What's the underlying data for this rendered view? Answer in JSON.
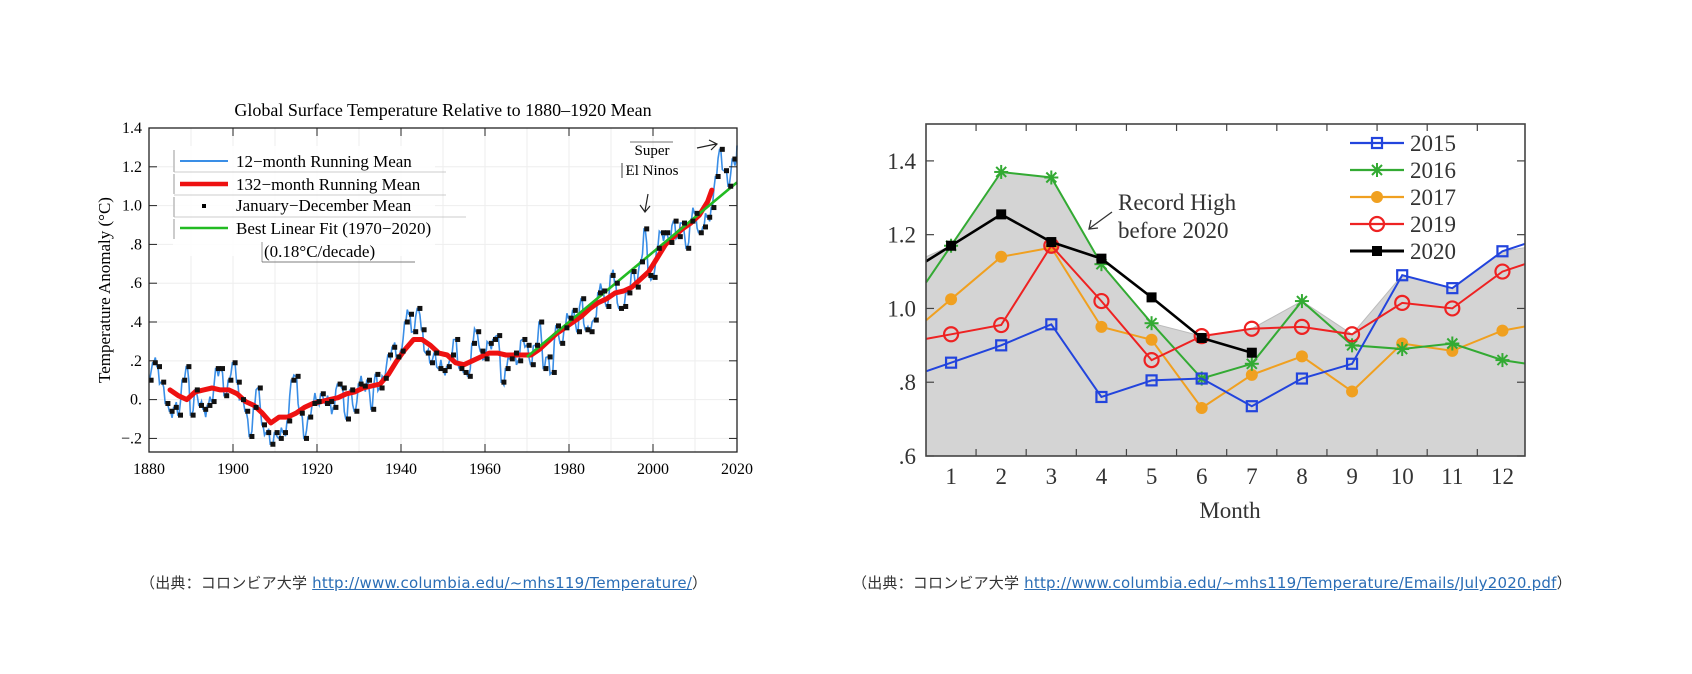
{
  "chart_data": [
    {
      "type": "line",
      "title": "Global Surface Temperature Relative to 1880–1920 Mean",
      "xlabel": "",
      "ylabel": "Temperature Anomaly (°C)",
      "xlim": [
        1880,
        2020
      ],
      "ylim": [
        -0.27,
        1.4
      ],
      "xticks": [
        1880,
        1900,
        1920,
        1940,
        1960,
        1980,
        2000,
        2020
      ],
      "xtick_labels": [
        "1880",
        "1900",
        "1920",
        "1940",
        "1960",
        "1980",
        "2000",
        "2020"
      ],
      "yticks": [
        -0.2,
        0.0,
        0.2,
        0.4,
        0.6,
        0.8,
        1.0,
        1.2,
        1.4
      ],
      "ytick_labels": [
        "−.2",
        "0.",
        ".2",
        ".4",
        ".6",
        ".8",
        "1.0",
        "1.2",
        "1.4"
      ],
      "grid": true,
      "legend_position": "top-left",
      "legend": [
        {
          "label": "12−month Running Mean",
          "color": "#3a8ee6",
          "style": "line"
        },
        {
          "label": "132−month Running Mean",
          "color": "#ee1111",
          "style": "thick-line"
        },
        {
          "label": "January−December Mean",
          "color": "#000000",
          "style": "marker"
        },
        {
          "label": "Best Linear Fit (1970−2020)",
          "color": "#22bb22",
          "style": "line"
        }
      ],
      "legend_note": "(0.18°C/decade)",
      "annotations": [
        {
          "text_lines": [
            "Super",
            "El Ninos"
          ],
          "points_to": [
            1998,
            2016
          ]
        }
      ],
      "x": [
        1880,
        1881,
        1882,
        1883,
        1884,
        1885,
        1886,
        1887,
        1888,
        1889,
        1890,
        1891,
        1892,
        1893,
        1894,
        1895,
        1896,
        1897,
        1898,
        1899,
        1900,
        1901,
        1902,
        1903,
        1904,
        1905,
        1906,
        1907,
        1908,
        1909,
        1910,
        1911,
        1912,
        1913,
        1914,
        1915,
        1916,
        1917,
        1918,
        1919,
        1920,
        1921,
        1922,
        1923,
        1924,
        1925,
        1926,
        1927,
        1928,
        1929,
        1930,
        1931,
        1932,
        1933,
        1934,
        1935,
        1936,
        1937,
        1938,
        1939,
        1940,
        1941,
        1942,
        1943,
        1944,
        1945,
        1946,
        1947,
        1948,
        1949,
        1950,
        1951,
        1952,
        1953,
        1954,
        1955,
        1956,
        1957,
        1958,
        1959,
        1960,
        1961,
        1962,
        1963,
        1964,
        1965,
        1966,
        1967,
        1968,
        1969,
        1970,
        1971,
        1972,
        1973,
        1974,
        1975,
        1976,
        1977,
        1978,
        1979,
        1980,
        1981,
        1982,
        1983,
        1984,
        1985,
        1986,
        1987,
        1988,
        1989,
        1990,
        1991,
        1992,
        1993,
        1994,
        1995,
        1996,
        1997,
        1998,
        1999,
        2000,
        2001,
        2002,
        2003,
        2004,
        2005,
        2006,
        2007,
        2008,
        2009,
        2010,
        2011,
        2012,
        2013,
        2014,
        2015,
        2016,
        2017,
        2018,
        2019
      ],
      "series": [
        {
          "name": "January−December Mean",
          "values": [
            0.1,
            0.19,
            0.17,
            0.09,
            -0.02,
            -0.06,
            -0.04,
            -0.08,
            0.1,
            0.17,
            -0.08,
            0.05,
            -0.03,
            -0.05,
            -0.03,
            -0.01,
            0.16,
            0.16,
            0.02,
            0.1,
            0.19,
            0.09,
            0.0,
            -0.06,
            -0.19,
            -0.04,
            0.06,
            -0.13,
            -0.17,
            -0.23,
            -0.17,
            -0.2,
            -0.17,
            -0.11,
            0.1,
            0.12,
            -0.07,
            -0.2,
            -0.09,
            -0.02,
            -0.01,
            0.03,
            -0.02,
            -0.01,
            -0.04,
            0.08,
            0.06,
            -0.1,
            0.05,
            -0.06,
            0.08,
            0.07,
            0.1,
            -0.05,
            0.13,
            0.06,
            0.11,
            0.23,
            0.27,
            0.22,
            0.25,
            0.4,
            0.44,
            0.35,
            0.47,
            0.36,
            0.24,
            0.19,
            0.24,
            0.16,
            0.15,
            0.17,
            0.23,
            0.31,
            0.16,
            0.14,
            0.12,
            0.29,
            0.35,
            0.25,
            0.21,
            0.29,
            0.31,
            0.33,
            0.09,
            0.16,
            0.21,
            0.24,
            0.2,
            0.31,
            0.28,
            0.18,
            0.28,
            0.4,
            0.16,
            0.22,
            0.14,
            0.38,
            0.29,
            0.37,
            0.42,
            0.46,
            0.35,
            0.52,
            0.36,
            0.35,
            0.41,
            0.55,
            0.56,
            0.48,
            0.64,
            0.6,
            0.47,
            0.48,
            0.55,
            0.66,
            0.58,
            0.71,
            0.88,
            0.64,
            0.63,
            0.78,
            0.86,
            0.86,
            0.81,
            0.92,
            0.84,
            0.91,
            0.78,
            0.92,
            0.96,
            0.86,
            0.89,
            0.94,
            0.99,
            1.15,
            1.29,
            1.18,
            1.1,
            1.24
          ]
        },
        {
          "name": "132−month Running Mean",
          "x": [
            1885,
            1887,
            1889,
            1891,
            1893,
            1895,
            1897,
            1899,
            1901,
            1903,
            1905,
            1907,
            1909,
            1911,
            1913,
            1915,
            1917,
            1919,
            1921,
            1923,
            1925,
            1927,
            1929,
            1931,
            1933,
            1935,
            1937,
            1939,
            1941,
            1943,
            1945,
            1947,
            1949,
            1951,
            1953,
            1955,
            1957,
            1959,
            1961,
            1963,
            1965,
            1967,
            1969,
            1971,
            1973,
            1975,
            1977,
            1979,
            1981,
            1983,
            1985,
            1987,
            1989,
            1991,
            1993,
            1995,
            1997,
            1999,
            2001,
            2003,
            2005,
            2007,
            2009,
            2011,
            2013,
            2014
          ],
          "values": [
            0.05,
            0.02,
            0.0,
            0.04,
            0.05,
            0.06,
            0.05,
            0.05,
            0.03,
            -0.01,
            -0.03,
            -0.07,
            -0.12,
            -0.09,
            -0.09,
            -0.07,
            -0.04,
            -0.02,
            -0.01,
            0.0,
            0.01,
            0.03,
            0.04,
            0.06,
            0.07,
            0.08,
            0.13,
            0.2,
            0.26,
            0.31,
            0.31,
            0.28,
            0.24,
            0.23,
            0.19,
            0.18,
            0.2,
            0.22,
            0.24,
            0.24,
            0.23,
            0.23,
            0.23,
            0.23,
            0.26,
            0.3,
            0.34,
            0.37,
            0.4,
            0.43,
            0.47,
            0.5,
            0.52,
            0.55,
            0.56,
            0.58,
            0.62,
            0.66,
            0.73,
            0.8,
            0.84,
            0.88,
            0.91,
            0.95,
            1.02,
            1.08
          ]
        },
        {
          "name": "Best Linear Fit (1970−2020)",
          "x": [
            1970,
            2020
          ],
          "values": [
            0.22,
            1.12
          ]
        }
      ]
    },
    {
      "type": "line",
      "title": "",
      "xlabel": "Month",
      "ylabel": "",
      "xlim": [
        0.5,
        12.45
      ],
      "ylim": [
        0.6,
        1.5
      ],
      "categories": [
        "1",
        "2",
        "3",
        "4",
        "5",
        "6",
        "7",
        "8",
        "9",
        "10",
        "11",
        "12"
      ],
      "ytick_labels": [
        ".6",
        ".8",
        "1.0",
        "1.2",
        "1.4"
      ],
      "yticks": [
        0.6,
        0.8,
        1.0,
        1.2,
        1.4
      ],
      "legend_position": "top-right",
      "annotations": [
        {
          "text_lines": [
            "Record High",
            "before 2020"
          ],
          "points_to": "shaded-region"
        }
      ],
      "shaded_region": {
        "name": "Record High before 2020",
        "color": "#d4d4d4"
      },
      "series": [
        {
          "name": "2015",
          "color": "#2244dd",
          "marker": "square-open",
          "values": [
            0.853,
            0.9,
            0.957,
            0.76,
            0.805,
            0.81,
            0.735,
            0.81,
            0.85,
            1.09,
            1.055,
            1.155
          ]
        },
        {
          "name": "2016",
          "color": "#33aa33",
          "marker": "asterisk",
          "values": [
            1.17,
            1.37,
            1.355,
            1.12,
            0.96,
            0.81,
            0.85,
            1.02,
            0.9,
            0.89,
            0.905,
            0.86
          ]
        },
        {
          "name": "2017",
          "color": "#f0a020",
          "marker": "circle-filled",
          "values": [
            1.025,
            1.14,
            1.165,
            0.95,
            0.915,
            0.73,
            0.82,
            0.87,
            0.775,
            0.905,
            0.885,
            0.94
          ]
        },
        {
          "name": "2019",
          "color": "#ee2222",
          "marker": "circle-open",
          "values": [
            0.93,
            0.955,
            1.17,
            1.02,
            0.86,
            0.925,
            0.945,
            0.95,
            0.93,
            1.015,
            1.0,
            1.1
          ]
        },
        {
          "name": "2020",
          "color": "#000000",
          "marker": "square-filled",
          "values": [
            1.17,
            1.255,
            1.18,
            1.135,
            1.03,
            0.92,
            0.88,
            null,
            null,
            null,
            null,
            null
          ]
        }
      ]
    }
  ],
  "captions": [
    {
      "prefix": "（出典：コロンビア大学 ",
      "link": "http://www.columbia.edu/~mhs119/Temperature/",
      "suffix": "）"
    },
    {
      "prefix": "（出典：コロンビア大学 ",
      "link": "http://www.columbia.edu/~mhs119/Temperature/Emails/July2020.pdf",
      "suffix": "）"
    }
  ]
}
